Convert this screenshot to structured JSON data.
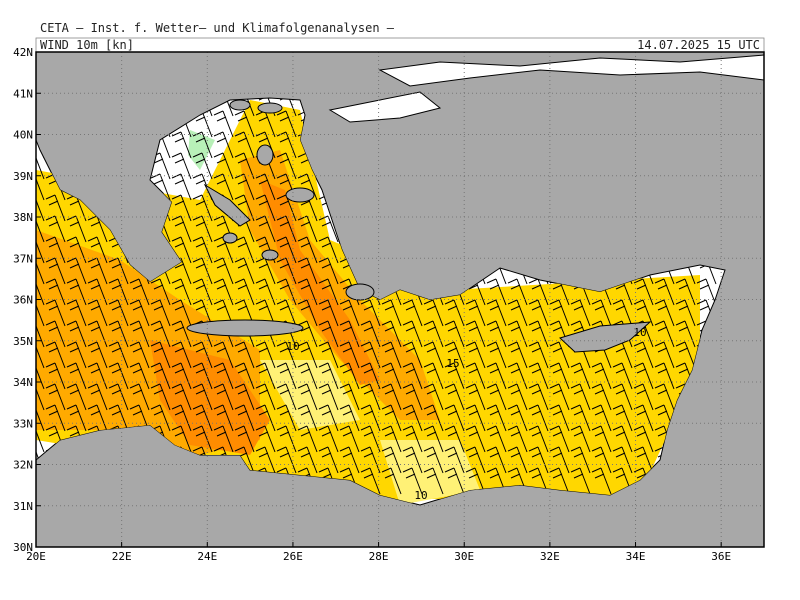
{
  "header": {
    "title": "CETA — Inst. f. Wetter— und Klimafolgenanalysen —",
    "field": "WIND_10m_[kn]",
    "valid_time": "14.07.2025 15 UTC"
  },
  "map": {
    "xlim": [
      20,
      37
    ],
    "ylim": [
      30,
      42
    ],
    "xticks": [
      {
        "value": 20,
        "label": "20E"
      },
      {
        "value": 22,
        "label": "22E"
      },
      {
        "value": 24,
        "label": "24E"
      },
      {
        "value": 26,
        "label": "26E"
      },
      {
        "value": 28,
        "label": "28E"
      },
      {
        "value": 30,
        "label": "30E"
      },
      {
        "value": 32,
        "label": "32E"
      },
      {
        "value": 34,
        "label": "34E"
      },
      {
        "value": 36,
        "label": "36E"
      }
    ],
    "yticks": [
      {
        "value": 30,
        "label": "30N"
      },
      {
        "value": 31,
        "label": "31N"
      },
      {
        "value": 32,
        "label": "32N"
      },
      {
        "value": 33,
        "label": "33N"
      },
      {
        "value": 34,
        "label": "34N"
      },
      {
        "value": 35,
        "label": "35N"
      },
      {
        "value": 36,
        "label": "36N"
      },
      {
        "value": 37,
        "label": "37N"
      },
      {
        "value": 38,
        "label": "38N"
      },
      {
        "value": 39,
        "label": "39N"
      },
      {
        "value": 40,
        "label": "40N"
      },
      {
        "value": 41,
        "label": "41N"
      },
      {
        "value": 42,
        "label": "42N"
      }
    ],
    "contour_labels": [
      "10",
      "15",
      "10",
      "10"
    ]
  }
}
